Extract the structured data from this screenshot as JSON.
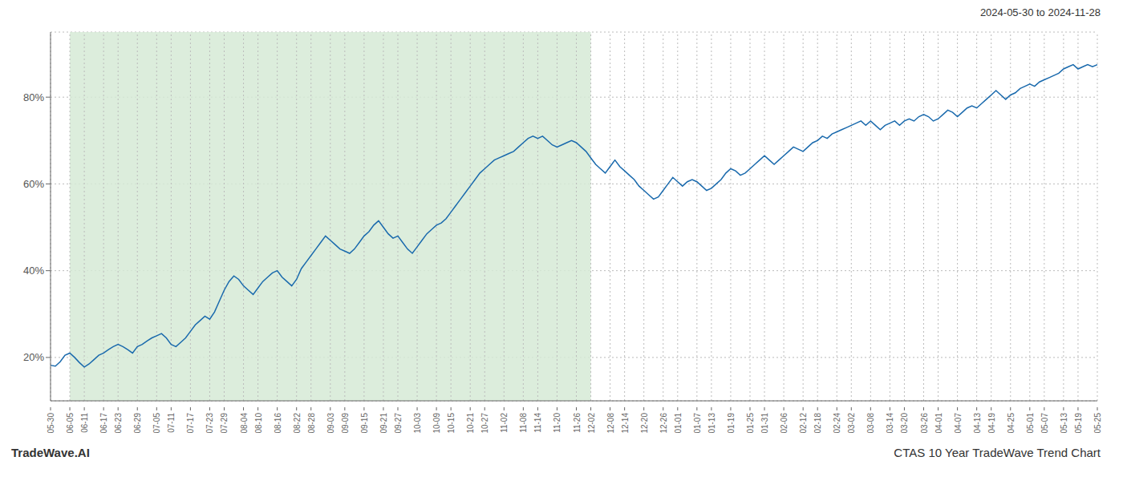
{
  "chart_data": {
    "type": "line",
    "title": "2024-05-30 to 2024-11-28",
    "annotations": [
      "TradeWave.AI",
      "CTAS 10 Year TradeWave Trend Chart"
    ],
    "color": "#1a6aad",
    "grid": true,
    "shade": {
      "from": "06-05",
      "to": "12-02",
      "color": "#d6ead6"
    },
    "ylim": [
      10,
      95
    ],
    "yticks": [
      {
        "value": 20,
        "label": "20%"
      },
      {
        "value": 40,
        "label": "40%"
      },
      {
        "value": 60,
        "label": "60%"
      },
      {
        "value": 80,
        "label": "80%"
      }
    ],
    "categories": [
      "05-30",
      null,
      null,
      null,
      "06-05",
      null,
      null,
      "06-11",
      null,
      null,
      null,
      "06-17",
      null,
      null,
      "06-23",
      null,
      null,
      null,
      "06-29",
      null,
      null,
      null,
      "07-05",
      null,
      null,
      "07-11",
      null,
      null,
      null,
      "07-17",
      null,
      null,
      null,
      "07-23",
      null,
      null,
      "07-29",
      null,
      null,
      null,
      "08-04",
      null,
      null,
      "08-10",
      null,
      null,
      null,
      "08-16",
      null,
      null,
      null,
      "08-22",
      null,
      null,
      "08-28",
      null,
      null,
      null,
      "09-03",
      null,
      null,
      "09-09",
      null,
      null,
      null,
      "09-15",
      null,
      null,
      null,
      "09-21",
      null,
      null,
      "09-27",
      null,
      null,
      null,
      "10-03",
      null,
      null,
      null,
      "10-09",
      null,
      null,
      "10-15",
      null,
      null,
      null,
      "10-21",
      null,
      null,
      "10-27",
      null,
      null,
      null,
      "11-02",
      null,
      null,
      null,
      "11-08",
      null,
      null,
      "11-14",
      null,
      null,
      null,
      "11-20",
      null,
      null,
      null,
      "11-26",
      null,
      null,
      "12-02",
      null,
      null,
      null,
      "12-08",
      null,
      null,
      "12-14",
      null,
      null,
      null,
      "12-20",
      null,
      null,
      null,
      "12-26",
      null,
      null,
      "01-01",
      null,
      null,
      null,
      "01-07",
      null,
      null,
      "01-13",
      null,
      null,
      null,
      "01-19",
      null,
      null,
      null,
      "01-25",
      null,
      null,
      "01-31",
      null,
      null,
      null,
      "02-06",
      null,
      null,
      null,
      "02-12",
      null,
      null,
      "02-18",
      null,
      null,
      null,
      "02-24",
      null,
      null,
      "03-02",
      null,
      null,
      null,
      "03-08",
      null,
      null,
      null,
      "03-14",
      null,
      null,
      "03-20",
      null,
      null,
      null,
      "03-26",
      null,
      null,
      "04-01",
      null,
      null,
      null,
      "04-07",
      null,
      null,
      null,
      "04-13",
      null,
      null,
      "04-19",
      null,
      null,
      null,
      "04-25",
      null,
      null,
      null,
      "05-01",
      null,
      null,
      "05-07",
      null,
      null,
      null,
      "05-13",
      null,
      null,
      "05-19",
      null,
      null,
      null,
      "05-25"
    ],
    "values": [
      18.2,
      18.0,
      19.0,
      20.5,
      21.0,
      20.0,
      18.8,
      17.8,
      18.5,
      19.5,
      20.5,
      21.0,
      21.8,
      22.5,
      23.0,
      22.5,
      21.8,
      21.0,
      22.5,
      23.0,
      23.8,
      24.5,
      25.0,
      25.5,
      24.5,
      23.0,
      22.5,
      23.5,
      24.5,
      26.0,
      27.5,
      28.5,
      29.5,
      28.8,
      30.5,
      33.0,
      35.5,
      37.5,
      38.8,
      38.0,
      36.5,
      35.5,
      34.5,
      36.0,
      37.5,
      38.5,
      39.5,
      40.0,
      38.5,
      37.5,
      36.5,
      38.0,
      40.5,
      42.0,
      43.5,
      45.0,
      46.5,
      48.0,
      47.0,
      46.0,
      45.0,
      44.5,
      44.0,
      45.0,
      46.5,
      48.0,
      49.0,
      50.5,
      51.5,
      50.0,
      48.5,
      47.5,
      48.0,
      46.5,
      45.0,
      44.0,
      45.5,
      47.0,
      48.5,
      49.5,
      50.5,
      51.0,
      52.0,
      53.5,
      55.0,
      56.5,
      58.0,
      59.5,
      61.0,
      62.5,
      63.5,
      64.5,
      65.5,
      66.0,
      66.5,
      67.0,
      67.5,
      68.5,
      69.5,
      70.5,
      71.0,
      70.5,
      71.0,
      70.0,
      69.0,
      68.5,
      69.0,
      69.5,
      70.0,
      69.5,
      68.5,
      67.5,
      66.0,
      64.5,
      63.5,
      62.5,
      64.0,
      65.5,
      64.0,
      63.0,
      62.0,
      61.0,
      59.5,
      58.5,
      57.5,
      56.5,
      57.0,
      58.5,
      60.0,
      61.5,
      60.5,
      59.5,
      60.5,
      61.0,
      60.5,
      59.5,
      58.5,
      59.0,
      60.0,
      61.0,
      62.5,
      63.5,
      63.0,
      62.0,
      62.5,
      63.5,
      64.5,
      65.5,
      66.5,
      65.5,
      64.5,
      65.5,
      66.5,
      67.5,
      68.5,
      68.0,
      67.5,
      68.5,
      69.5,
      70.0,
      71.0,
      70.5,
      71.5,
      72.0,
      72.5,
      73.0,
      73.5,
      74.0,
      74.5,
      73.5,
      74.5,
      73.5,
      72.5,
      73.5,
      74.0,
      74.5,
      73.5,
      74.5,
      75.0,
      74.5,
      75.5,
      76.0,
      75.5,
      74.5,
      75.0,
      76.0,
      77.0,
      76.5,
      75.5,
      76.5,
      77.5,
      78.0,
      77.5,
      78.5,
      79.5,
      80.5,
      81.5,
      80.5,
      79.5,
      80.5,
      81.0,
      82.0,
      82.5,
      83.0,
      82.5,
      83.5,
      84.0,
      84.5,
      85.0,
      85.5,
      86.5,
      87.0,
      87.5,
      86.5,
      87.0,
      87.5,
      87.0,
      87.5
    ]
  }
}
